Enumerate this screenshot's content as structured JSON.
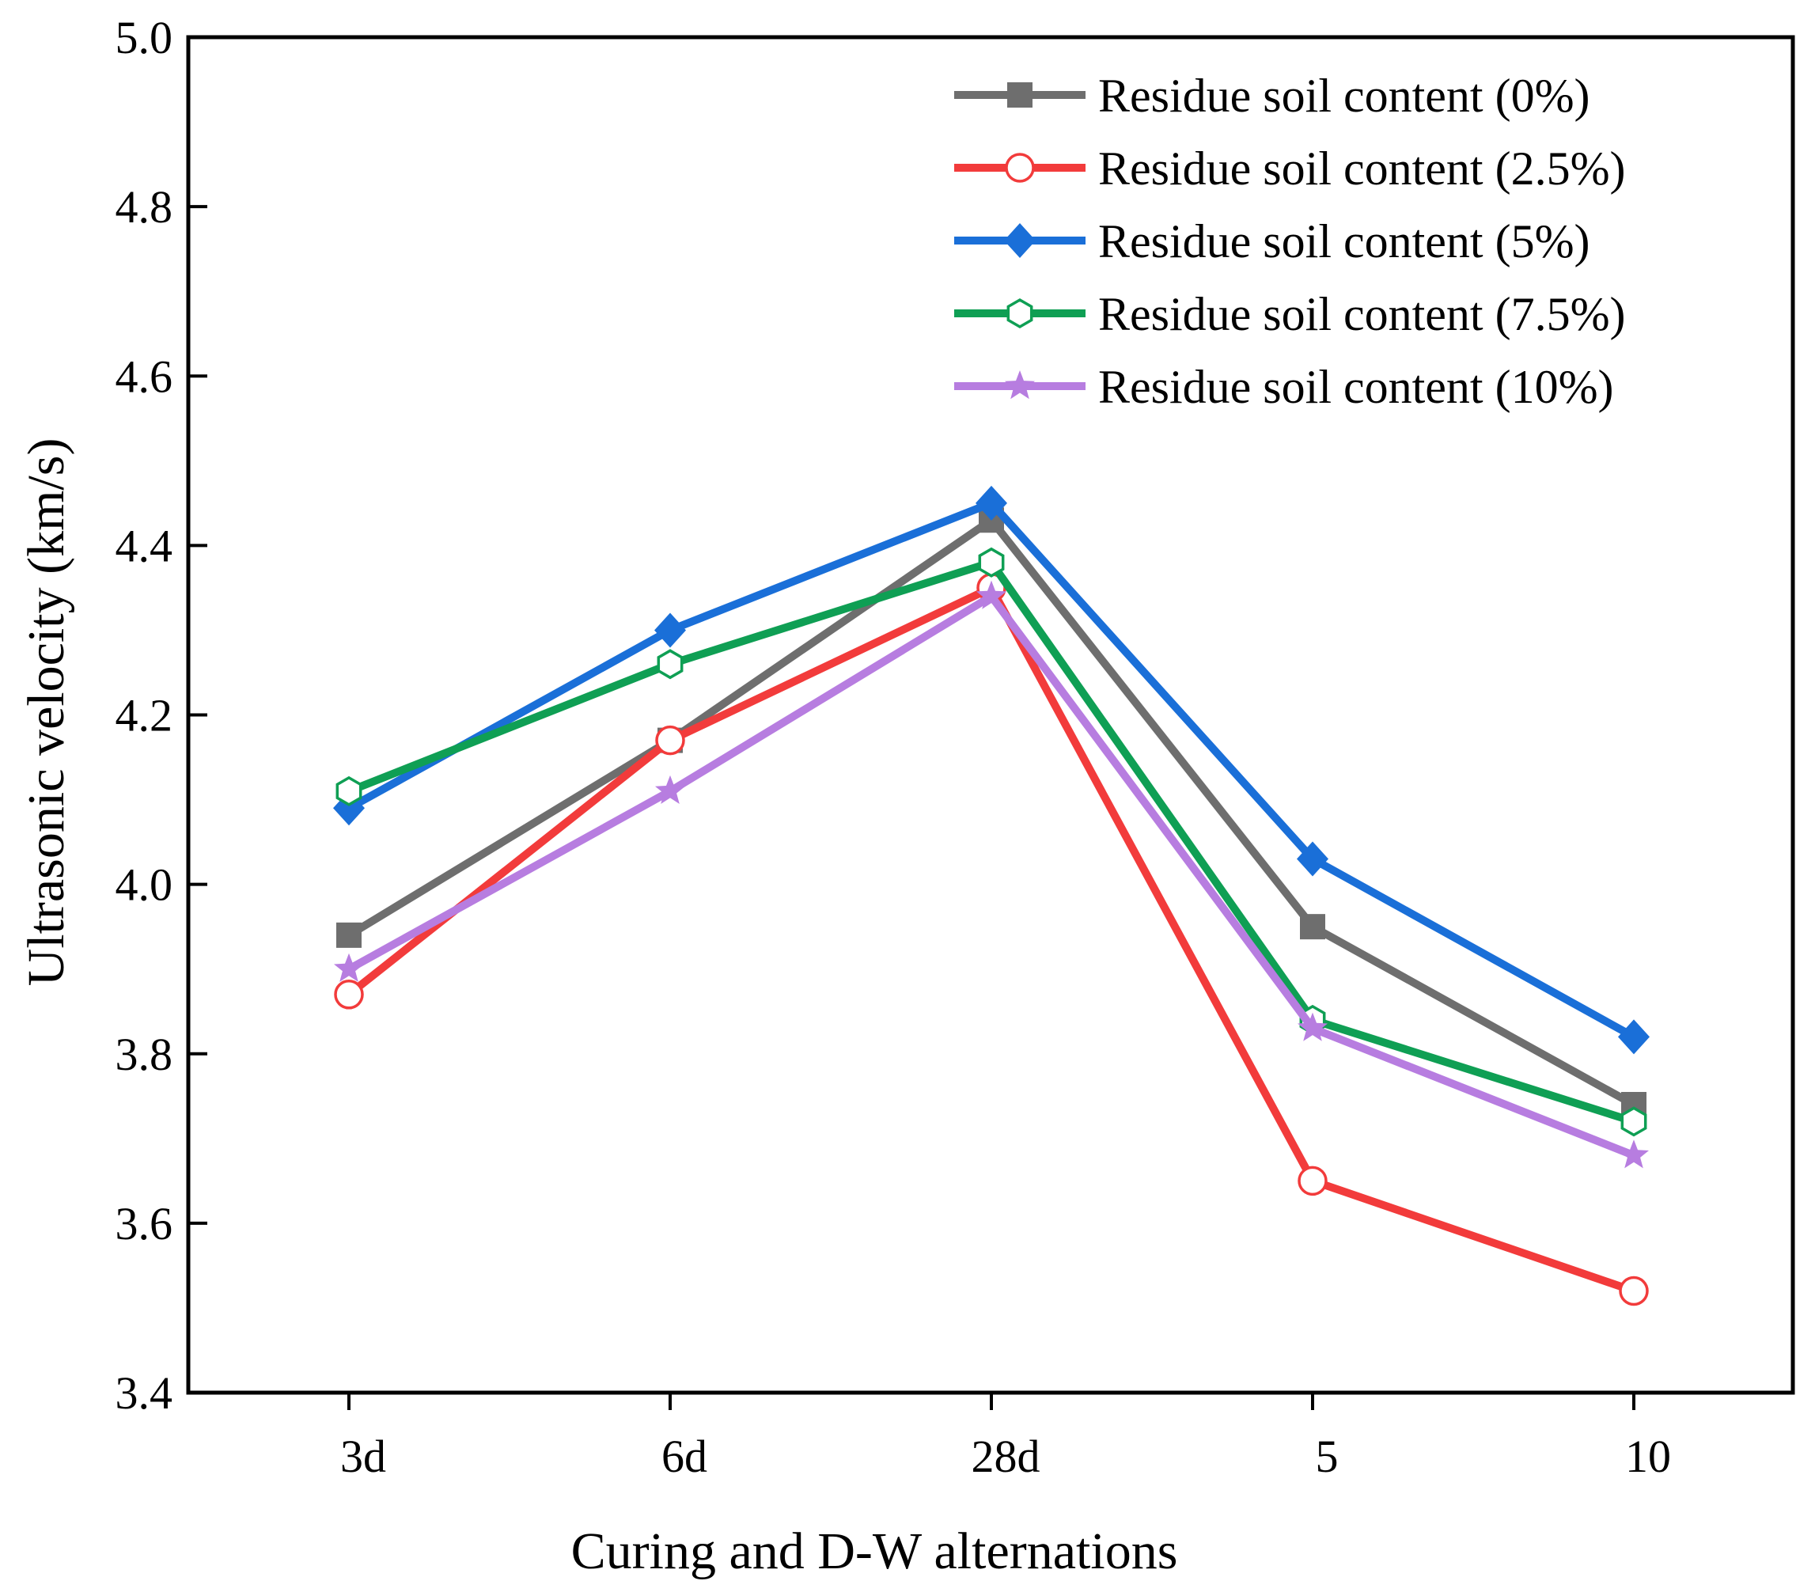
{
  "chart_data": {
    "type": "line",
    "title": "",
    "xlabel": "Curing and D-W alternations",
    "ylabel": "Ultrasonic velocity (km/s)",
    "categories": [
      "3d",
      "6d",
      "28d",
      "5",
      "10"
    ],
    "ylim": [
      3.4,
      5.0
    ],
    "yticks": [
      3.4,
      3.6,
      3.8,
      4.0,
      4.2,
      4.4,
      4.6,
      4.8,
      5.0
    ],
    "ytick_labels": [
      "3.4",
      "3.6",
      "3.8",
      "4.0",
      "4.2",
      "4.4",
      "4.6",
      "4.8",
      "5.0"
    ],
    "grid": false,
    "legend_position": "top-right",
    "series": [
      {
        "name": "Residue soil content (0%)",
        "color": "#6e6e6e",
        "marker": "square",
        "values": [
          3.94,
          4.17,
          4.43,
          3.95,
          3.74
        ]
      },
      {
        "name": "Residue soil content (2.5%)",
        "color": "#f23b3b",
        "marker": "circle-open",
        "values": [
          3.87,
          4.17,
          4.35,
          3.65,
          3.52
        ]
      },
      {
        "name": "Residue soil content (5%)",
        "color": "#1a6fd8",
        "marker": "diamond",
        "values": [
          4.09,
          4.3,
          4.45,
          4.03,
          3.82
        ]
      },
      {
        "name": "Residue soil content (7.5%)",
        "color": "#0f9f54",
        "marker": "hexagon-open",
        "values": [
          4.11,
          4.26,
          4.38,
          3.84,
          3.72
        ]
      },
      {
        "name": "Residue soil content (10%)",
        "color": "#b77de0",
        "marker": "star",
        "values": [
          3.9,
          4.11,
          4.34,
          3.83,
          3.68
        ]
      }
    ]
  }
}
